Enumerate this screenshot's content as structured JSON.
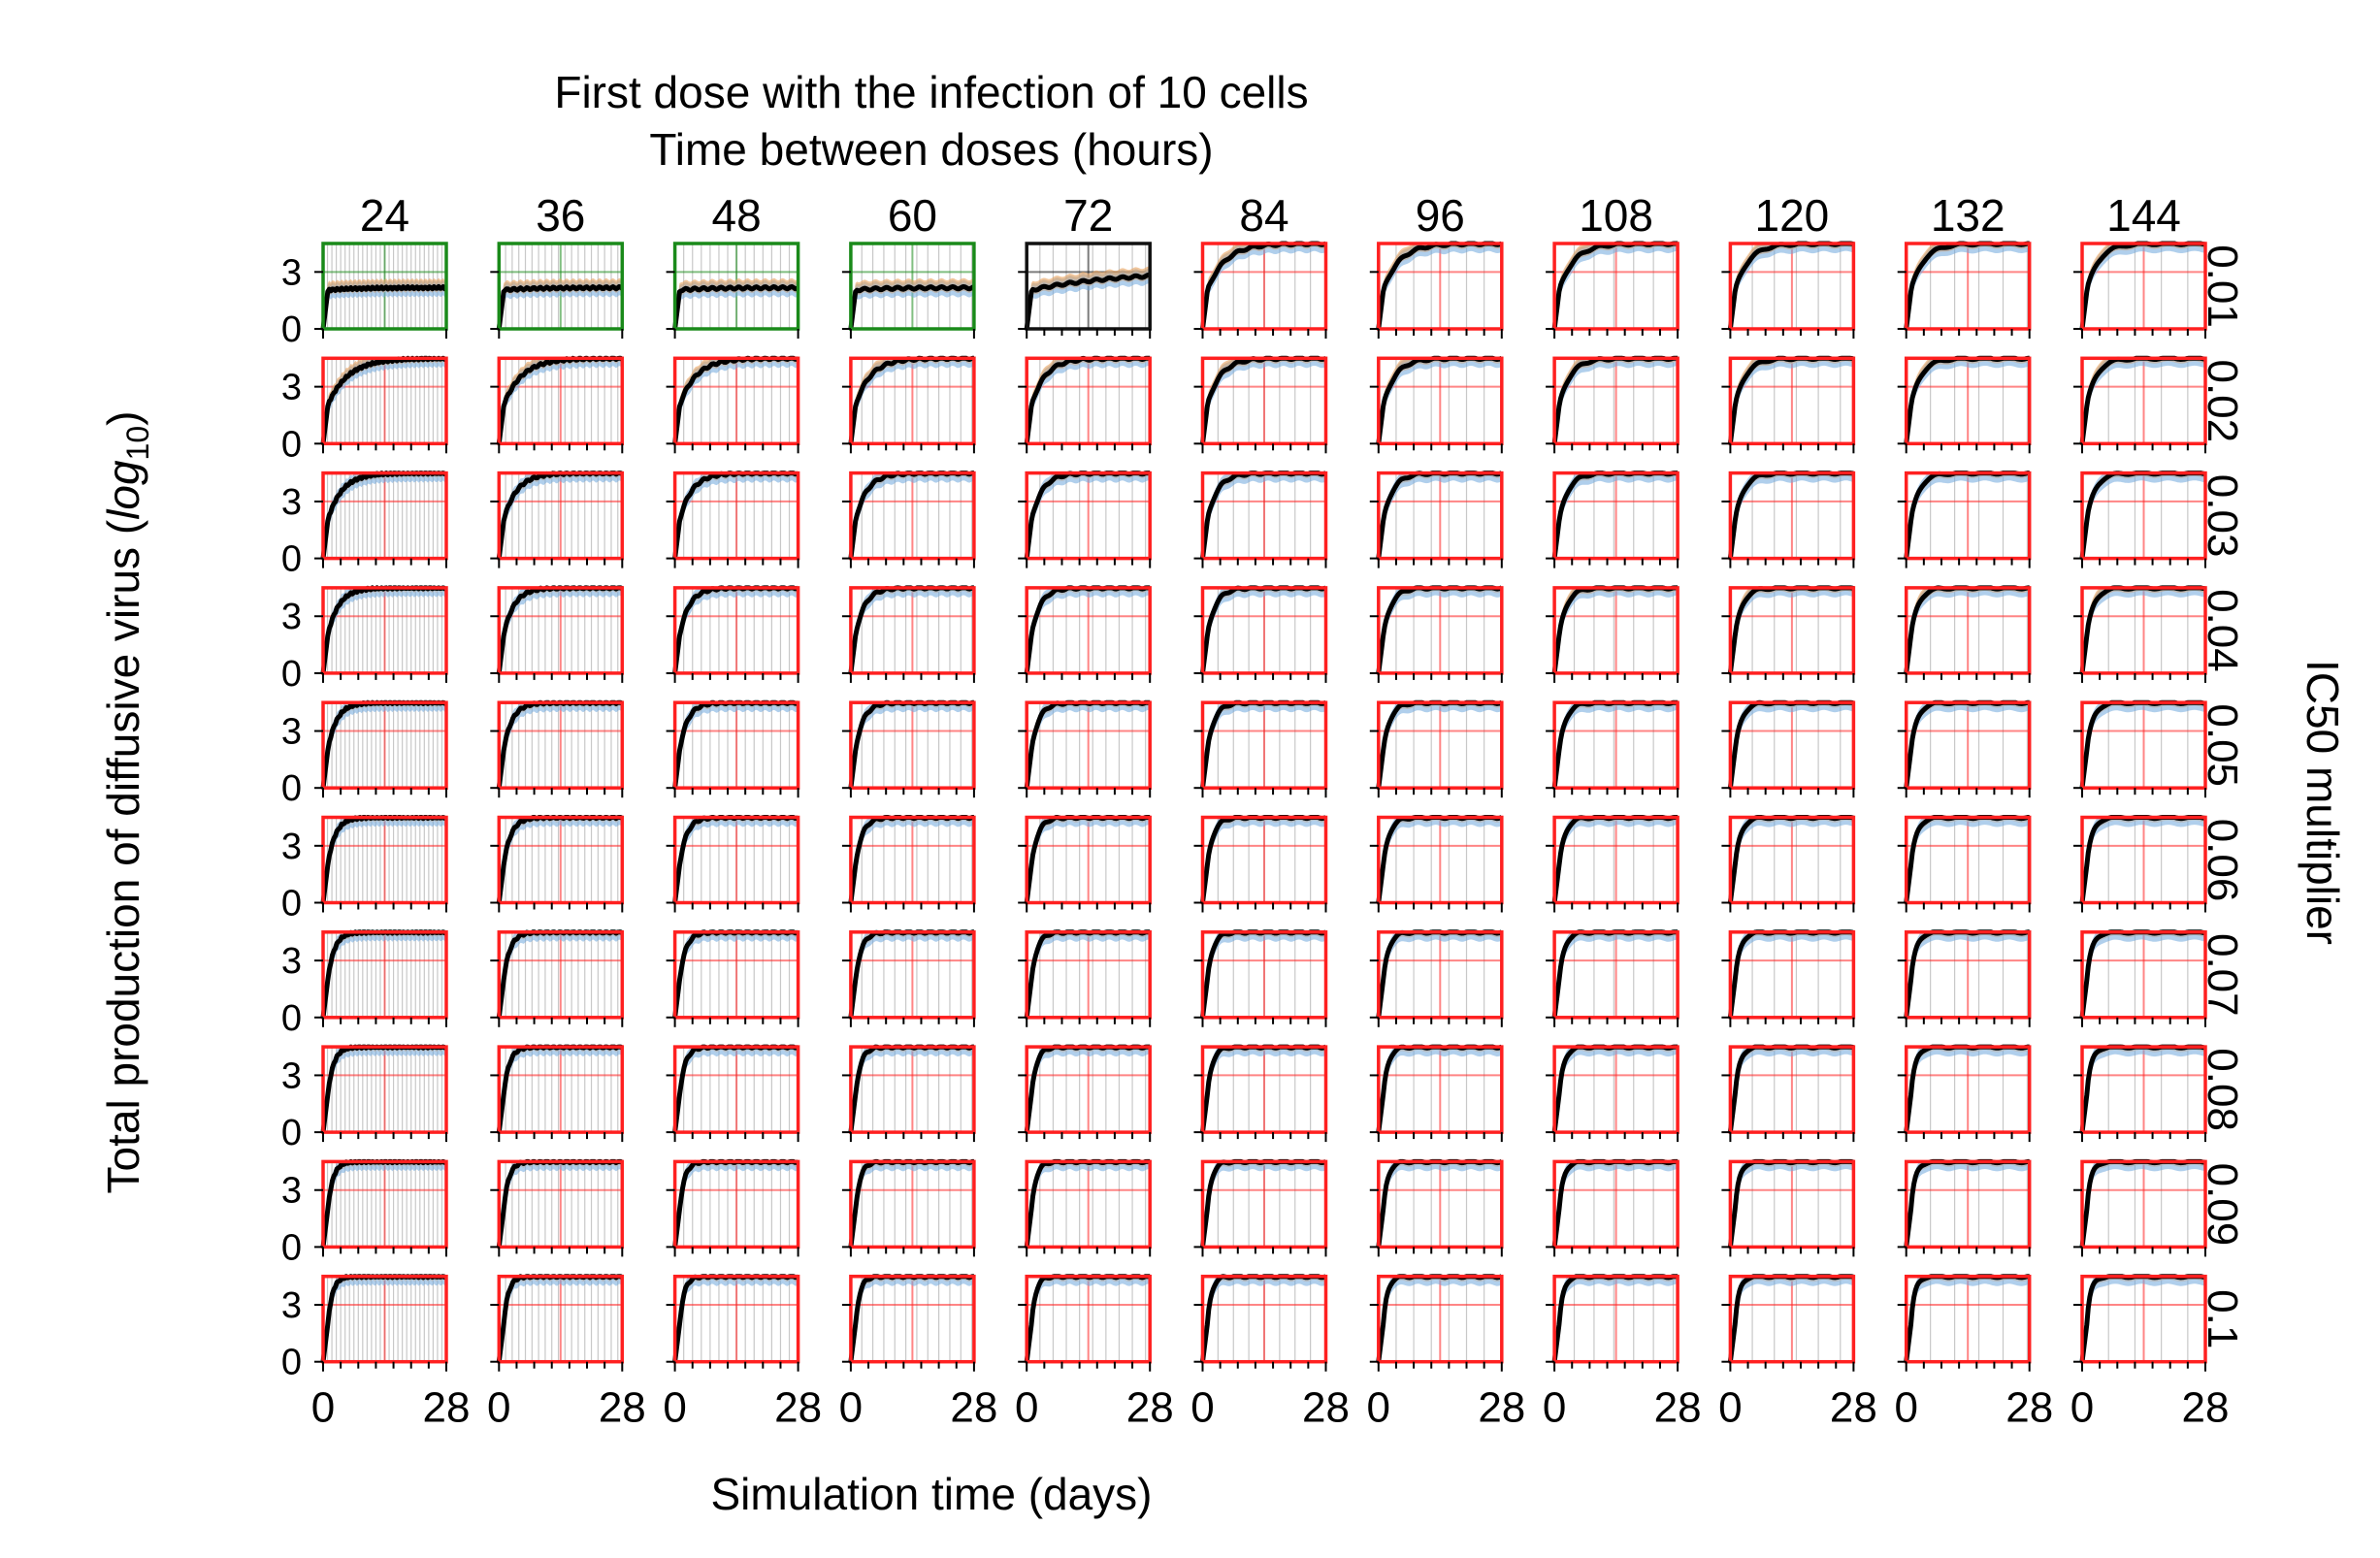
{
  "chart_data": {
    "type": "line",
    "title": "First dose with the infection of 10 cells",
    "subtitle": "Time between doses (hours)",
    "xlabel": "Simulation time (days)",
    "ylabel_main": "Total production of diffusive virus (",
    "ylabel_italic": "log",
    "ylabel_sub": "10",
    "ylabel_close": ")",
    "row_axis_label": "IC50 multiplier",
    "columns": [
      "24",
      "36",
      "48",
      "60",
      "72",
      "84",
      "96",
      "108",
      "120",
      "132",
      "144"
    ],
    "rows": [
      "0.01",
      "0.02",
      "0.03",
      "0.04",
      "0.05",
      "0.06",
      "0.07",
      "0.08",
      "0.09",
      "0.1"
    ],
    "x_tick_labels": [
      "0",
      "28"
    ],
    "y_tick_labels": [
      "0",
      "3"
    ],
    "xlim": [
      0,
      28
    ],
    "ylim": [
      0,
      4.5
    ],
    "frame_status": [
      [
        "green",
        "green",
        "green",
        "green",
        "black",
        "red",
        "red",
        "red",
        "red",
        "red",
        "red"
      ],
      [
        "red",
        "red",
        "red",
        "red",
        "red",
        "red",
        "red",
        "red",
        "red",
        "red",
        "red"
      ],
      [
        "red",
        "red",
        "red",
        "red",
        "red",
        "red",
        "red",
        "red",
        "red",
        "red",
        "red"
      ],
      [
        "red",
        "red",
        "red",
        "red",
        "red",
        "red",
        "red",
        "red",
        "red",
        "red",
        "red"
      ],
      [
        "red",
        "red",
        "red",
        "red",
        "red",
        "red",
        "red",
        "red",
        "red",
        "red",
        "red"
      ],
      [
        "red",
        "red",
        "red",
        "red",
        "red",
        "red",
        "red",
        "red",
        "red",
        "red",
        "red"
      ],
      [
        "red",
        "red",
        "red",
        "red",
        "red",
        "red",
        "red",
        "red",
        "red",
        "red",
        "red"
      ],
      [
        "red",
        "red",
        "red",
        "red",
        "red",
        "red",
        "red",
        "red",
        "red",
        "red",
        "red"
      ],
      [
        "red",
        "red",
        "red",
        "red",
        "red",
        "red",
        "red",
        "red",
        "red",
        "red",
        "red"
      ],
      [
        "red",
        "red",
        "red",
        "red",
        "red",
        "red",
        "red",
        "red",
        "red",
        "red",
        "red"
      ]
    ],
    "colors": {
      "green": "#1a8a1a",
      "black": "#111111",
      "red": "#ff2020",
      "mean_line": "#000000",
      "band_blue": "#6fa8dc",
      "band_orange": "#e8a05a",
      "band_grey": "#b5b5b5",
      "dose_line": "#c8c8c8"
    }
  }
}
